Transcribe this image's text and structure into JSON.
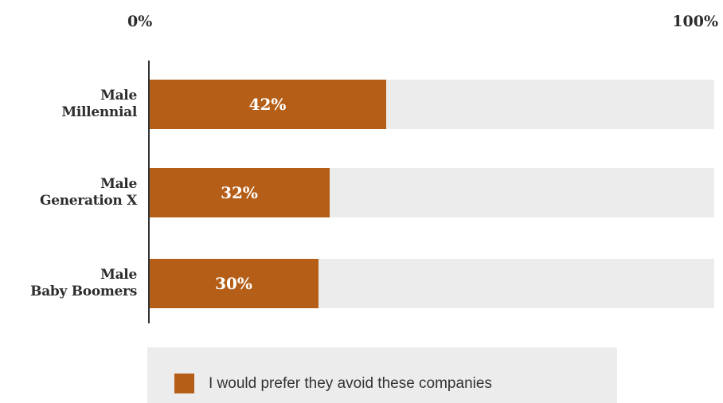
{
  "chart_data": {
    "type": "bar",
    "orientation": "horizontal",
    "stacked_background": true,
    "categories": [
      [
        "Male",
        "Millennial"
      ],
      [
        "Male",
        "Generation X"
      ],
      [
        "Male",
        "Baby Boomers"
      ]
    ],
    "series": [
      {
        "name": "I would prefer they avoid these companies",
        "values": [
          42,
          32,
          30
        ],
        "labels": [
          "42%",
          "32%",
          "30%"
        ],
        "color": "#b55e17"
      }
    ],
    "xlim": [
      0,
      100
    ],
    "xtick_labels": [
      "0%",
      "100%"
    ],
    "track_color": "#ececec",
    "grid": false,
    "legend_position": "bottom"
  }
}
